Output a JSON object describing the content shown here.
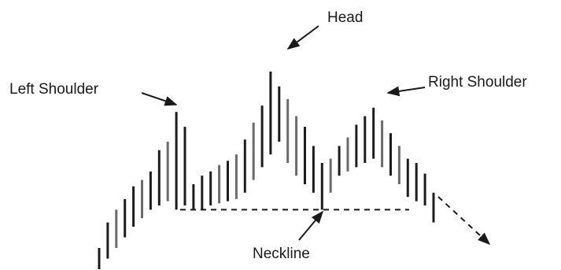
{
  "chart_data": {
    "type": "bar",
    "title": "",
    "xlabel": "",
    "ylabel": "",
    "grid": false,
    "colors": {
      "dark": "#1c1c1c",
      "mid": "#6b6b6b"
    },
    "ylim": [
      0,
      100
    ],
    "neckline_level": 28,
    "annotations": {
      "head": "Head",
      "left_shoulder": "Left Shoulder",
      "right_shoulder": "Right Shoulder",
      "neckline": "Neckline"
    },
    "bars": [
      {
        "low": 0,
        "high": 10,
        "tone": "dark"
      },
      {
        "low": 5,
        "high": 22,
        "tone": "dark"
      },
      {
        "low": 10,
        "high": 28,
        "tone": "mid"
      },
      {
        "low": 15,
        "high": 33,
        "tone": "dark"
      },
      {
        "low": 20,
        "high": 39,
        "tone": "dark"
      },
      {
        "low": 24,
        "high": 42,
        "tone": "mid"
      },
      {
        "low": 28,
        "high": 46,
        "tone": "dark"
      },
      {
        "low": 30,
        "high": 56,
        "tone": "dark"
      },
      {
        "low": 32,
        "high": 60,
        "tone": "mid"
      },
      {
        "low": 28,
        "high": 74,
        "tone": "dark"
      },
      {
        "low": 30,
        "high": 67,
        "tone": "dark"
      },
      {
        "low": 28,
        "high": 40,
        "tone": "dark"
      },
      {
        "low": 28,
        "high": 44,
        "tone": "dark"
      },
      {
        "low": 30,
        "high": 46,
        "tone": "dark"
      },
      {
        "low": 31,
        "high": 49,
        "tone": "mid"
      },
      {
        "low": 32,
        "high": 51,
        "tone": "dark"
      },
      {
        "low": 33,
        "high": 54,
        "tone": "mid"
      },
      {
        "low": 36,
        "high": 61,
        "tone": "dark"
      },
      {
        "low": 42,
        "high": 69,
        "tone": "mid"
      },
      {
        "low": 48,
        "high": 77,
        "tone": "dark"
      },
      {
        "low": 54,
        "high": 93,
        "tone": "dark"
      },
      {
        "low": 60,
        "high": 86,
        "tone": "dark"
      },
      {
        "low": 50,
        "high": 80,
        "tone": "mid"
      },
      {
        "low": 44,
        "high": 72,
        "tone": "mid"
      },
      {
        "low": 40,
        "high": 67,
        "tone": "dark"
      },
      {
        "low": 36,
        "high": 58,
        "tone": "dark"
      },
      {
        "low": 28,
        "high": 50,
        "tone": "dark"
      },
      {
        "low": 36,
        "high": 52,
        "tone": "mid"
      },
      {
        "low": 44,
        "high": 58,
        "tone": "dark"
      },
      {
        "low": 46,
        "high": 62,
        "tone": "mid"
      },
      {
        "low": 48,
        "high": 68,
        "tone": "dark"
      },
      {
        "low": 50,
        "high": 72,
        "tone": "dark"
      },
      {
        "low": 52,
        "high": 76,
        "tone": "dark"
      },
      {
        "low": 48,
        "high": 70,
        "tone": "mid"
      },
      {
        "low": 44,
        "high": 64,
        "tone": "dark"
      },
      {
        "low": 40,
        "high": 58,
        "tone": "mid"
      },
      {
        "low": 34,
        "high": 52,
        "tone": "dark"
      },
      {
        "low": 32,
        "high": 50,
        "tone": "dark"
      },
      {
        "low": 30,
        "high": 45,
        "tone": "dark"
      },
      {
        "low": 22,
        "high": 36,
        "tone": "dark"
      }
    ]
  }
}
